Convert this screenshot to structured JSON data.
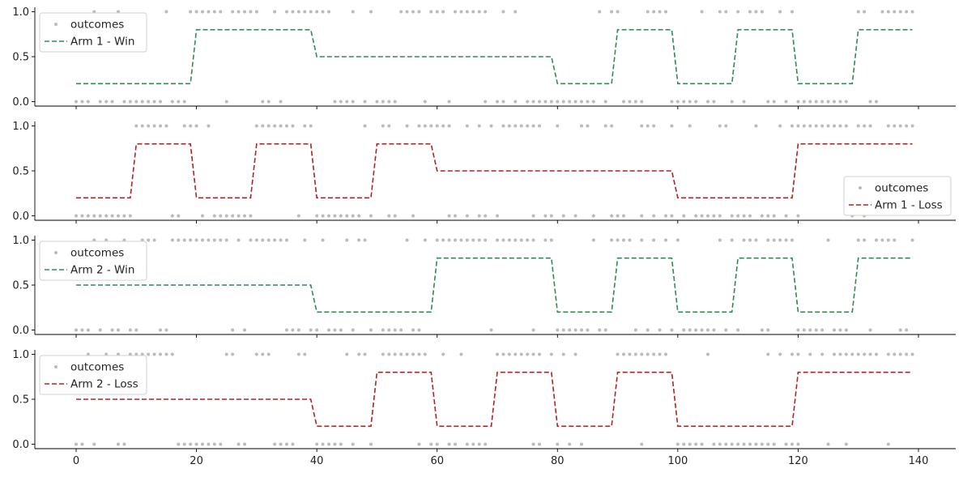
{
  "chart_data": [
    {
      "type": "line",
      "panel": 1,
      "ylim": [
        -0.05,
        1.05
      ],
      "xlim": [
        -7,
        146
      ],
      "yticks": [
        0.0,
        0.5,
        1.0
      ],
      "ytick_labels": [
        "0.0",
        "0.5",
        "1.0"
      ],
      "legend_position": "upper-left",
      "series": [
        {
          "name": "Arm 1 - Win",
          "kind": "line",
          "style": "dashed",
          "color": "#2e8b57",
          "x": [
            0,
            19,
            20,
            39,
            40,
            79,
            80,
            89,
            90,
            99,
            100,
            109,
            110,
            119,
            120,
            129,
            130,
            139
          ],
          "values": [
            0.2,
            0.2,
            0.8,
            0.8,
            0.5,
            0.5,
            0.2,
            0.2,
            0.8,
            0.8,
            0.2,
            0.2,
            0.8,
            0.8,
            0.2,
            0.2,
            0.8,
            0.8
          ]
        },
        {
          "name": "outcomes",
          "kind": "scatter",
          "color": "#bbbbbb",
          "ones": [
            3,
            7,
            15,
            19,
            20,
            21,
            22,
            23,
            24,
            26,
            27,
            28,
            29,
            30,
            33,
            35,
            36,
            37,
            38,
            39,
            40,
            41,
            42,
            46,
            49,
            54,
            55,
            56,
            57,
            59,
            60,
            61,
            63,
            64,
            65,
            66,
            67,
            68,
            71,
            73,
            87,
            89,
            90,
            95,
            96,
            97,
            98,
            104,
            107,
            108,
            110,
            112,
            113,
            114,
            117,
            119,
            130,
            131,
            134,
            135,
            136,
            137,
            138,
            139
          ],
          "zeros": [
            0,
            1,
            2,
            4,
            5,
            6,
            8,
            9,
            10,
            11,
            12,
            13,
            14,
            16,
            17,
            18,
            25,
            31,
            32,
            34,
            43,
            44,
            45,
            46,
            48,
            50,
            51,
            52,
            53,
            58,
            62,
            68,
            70,
            71,
            73,
            75,
            76,
            77,
            78,
            79,
            80,
            81,
            82,
            83,
            84,
            85,
            86,
            88,
            91,
            92,
            93,
            94,
            99,
            100,
            101,
            102,
            103,
            105,
            106,
            109,
            111,
            115,
            116,
            118,
            120,
            121,
            122,
            123,
            124,
            125,
            126,
            127,
            128,
            132,
            133
          ]
        }
      ]
    },
    {
      "type": "line",
      "panel": 2,
      "ylim": [
        -0.05,
        1.05
      ],
      "xlim": [
        -7,
        146
      ],
      "yticks": [
        0.0,
        0.5,
        1.0
      ],
      "ytick_labels": [
        "0.0",
        "0.5",
        "1.0"
      ],
      "legend_position": "lower-right",
      "series": [
        {
          "name": "Arm 1 - Loss",
          "kind": "line",
          "style": "dashed",
          "color": "#b22222",
          "x": [
            0,
            9,
            10,
            19,
            20,
            29,
            30,
            39,
            40,
            49,
            50,
            59,
            60,
            99,
            100,
            119,
            120,
            139
          ],
          "values": [
            0.2,
            0.2,
            0.8,
            0.8,
            0.2,
            0.2,
            0.8,
            0.8,
            0.2,
            0.2,
            0.8,
            0.8,
            0.5,
            0.5,
            0.2,
            0.2,
            0.8,
            0.8
          ]
        },
        {
          "name": "outcomes",
          "kind": "scatter",
          "color": "#bbbbbb",
          "ones": [
            10,
            11,
            12,
            13,
            14,
            15,
            18,
            19,
            20,
            22,
            30,
            31,
            32,
            33,
            34,
            35,
            36,
            38,
            39,
            48,
            51,
            52,
            55,
            57,
            58,
            59,
            60,
            61,
            62,
            65,
            67,
            69,
            71,
            72,
            73,
            74,
            75,
            76,
            77,
            80,
            84,
            85,
            88,
            89,
            94,
            95,
            96,
            99,
            102,
            107,
            108,
            113,
            117,
            119,
            120,
            121,
            122,
            123,
            124,
            125,
            126,
            127,
            128,
            130,
            131,
            132,
            135,
            136,
            137,
            138,
            139
          ],
          "zeros": [
            0,
            1,
            2,
            3,
            4,
            5,
            6,
            7,
            8,
            9,
            16,
            17,
            21,
            23,
            24,
            25,
            26,
            27,
            28,
            29,
            37,
            40,
            41,
            42,
            43,
            44,
            45,
            46,
            47,
            49,
            52,
            53,
            56,
            62,
            63,
            65,
            67,
            68,
            70,
            76,
            78,
            79,
            81,
            83,
            86,
            89,
            90,
            91,
            94,
            96,
            98,
            99,
            101,
            103,
            104,
            105,
            106,
            107,
            109,
            110,
            111,
            112,
            114,
            115,
            116,
            118,
            120,
            129,
            131
          ]
        }
      ]
    },
    {
      "type": "line",
      "panel": 3,
      "ylim": [
        -0.05,
        1.05
      ],
      "xlim": [
        -7,
        146
      ],
      "yticks": [
        0.0,
        0.5,
        1.0
      ],
      "ytick_labels": [
        "0.0",
        "0.5",
        "1.0"
      ],
      "legend_position": "upper-left",
      "series": [
        {
          "name": "Arm 2 - Win",
          "kind": "line",
          "style": "dashed",
          "color": "#2e8b57",
          "x": [
            0,
            39,
            40,
            59,
            60,
            79,
            80,
            89,
            90,
            99,
            100,
            109,
            110,
            119,
            120,
            129,
            130,
            139
          ],
          "values": [
            0.5,
            0.5,
            0.2,
            0.2,
            0.8,
            0.8,
            0.2,
            0.2,
            0.8,
            0.8,
            0.2,
            0.2,
            0.8,
            0.8,
            0.2,
            0.2,
            0.8,
            0.8
          ]
        },
        {
          "name": "outcomes",
          "kind": "scatter",
          "color": "#bbbbbb",
          "ones": [
            3,
            5,
            8,
            11,
            12,
            13,
            16,
            17,
            18,
            19,
            20,
            21,
            22,
            23,
            24,
            25,
            27,
            29,
            30,
            31,
            32,
            33,
            34,
            35,
            38,
            41,
            45,
            47,
            48,
            55,
            58,
            60,
            61,
            62,
            63,
            64,
            65,
            66,
            67,
            68,
            70,
            71,
            72,
            73,
            74,
            75,
            76,
            78,
            79,
            86,
            89,
            90,
            91,
            92,
            94,
            96,
            98,
            100,
            107,
            109,
            111,
            112,
            113,
            115,
            116,
            117,
            118,
            119,
            125,
            130,
            131,
            133,
            134,
            135,
            136,
            139
          ],
          "zeros": [
            0,
            1,
            2,
            4,
            6,
            7,
            9,
            10,
            14,
            15,
            26,
            28,
            35,
            36,
            37,
            39,
            40,
            42,
            43,
            44,
            46,
            49,
            51,
            52,
            53,
            54,
            56,
            57,
            69,
            76,
            80,
            81,
            82,
            83,
            84,
            85,
            87,
            88,
            93,
            95,
            97,
            99,
            101,
            102,
            103,
            104,
            105,
            106,
            108,
            110,
            114,
            115,
            120,
            121,
            122,
            123,
            124,
            126,
            127,
            128,
            132,
            137,
            138
          ]
        }
      ]
    },
    {
      "type": "line",
      "panel": 4,
      "ylim": [
        -0.05,
        1.05
      ],
      "xlim": [
        -7,
        146
      ],
      "yticks": [
        0.0,
        0.5,
        1.0
      ],
      "ytick_labels": [
        "0.0",
        "0.5",
        "1.0"
      ],
      "xticks": [
        0,
        20,
        40,
        60,
        80,
        100,
        120,
        140
      ],
      "xtick_labels": [
        "0",
        "20",
        "40",
        "60",
        "80",
        "100",
        "120",
        "140"
      ],
      "legend_position": "upper-left",
      "series": [
        {
          "name": "Arm 2 - Loss",
          "kind": "line",
          "style": "dashed",
          "color": "#b22222",
          "x": [
            0,
            39,
            40,
            49,
            50,
            59,
            60,
            69,
            70,
            79,
            80,
            89,
            90,
            99,
            100,
            119,
            120,
            139
          ],
          "values": [
            0.5,
            0.5,
            0.2,
            0.2,
            0.8,
            0.8,
            0.2,
            0.2,
            0.8,
            0.8,
            0.2,
            0.2,
            0.8,
            0.8,
            0.2,
            0.2,
            0.8,
            0.8
          ]
        },
        {
          "name": "outcomes",
          "kind": "scatter",
          "color": "#bbbbbb",
          "ones": [
            2,
            5,
            7,
            9,
            10,
            11,
            12,
            13,
            14,
            15,
            16,
            25,
            26,
            30,
            31,
            32,
            37,
            38,
            45,
            47,
            48,
            51,
            52,
            53,
            54,
            55,
            56,
            57,
            58,
            61,
            64,
            70,
            71,
            72,
            73,
            74,
            75,
            76,
            77,
            79,
            81,
            83,
            90,
            91,
            92,
            93,
            94,
            95,
            96,
            97,
            98,
            105,
            115,
            117,
            119,
            120,
            122,
            124,
            126,
            127,
            128,
            129,
            130,
            131,
            132,
            133,
            135,
            136,
            137,
            138,
            139
          ],
          "zeros": [
            0,
            1,
            3,
            7,
            8,
            17,
            18,
            19,
            20,
            21,
            22,
            23,
            24,
            27,
            28,
            33,
            34,
            35,
            36,
            40,
            41,
            42,
            43,
            44,
            46,
            49,
            57,
            59,
            60,
            62,
            63,
            65,
            66,
            67,
            68,
            76,
            77,
            80,
            82,
            84,
            94,
            100,
            101,
            102,
            103,
            104,
            106,
            107,
            108,
            109,
            110,
            111,
            112,
            113,
            114,
            115,
            116,
            118,
            119,
            120,
            125,
            128,
            135
          ]
        }
      ]
    }
  ]
}
